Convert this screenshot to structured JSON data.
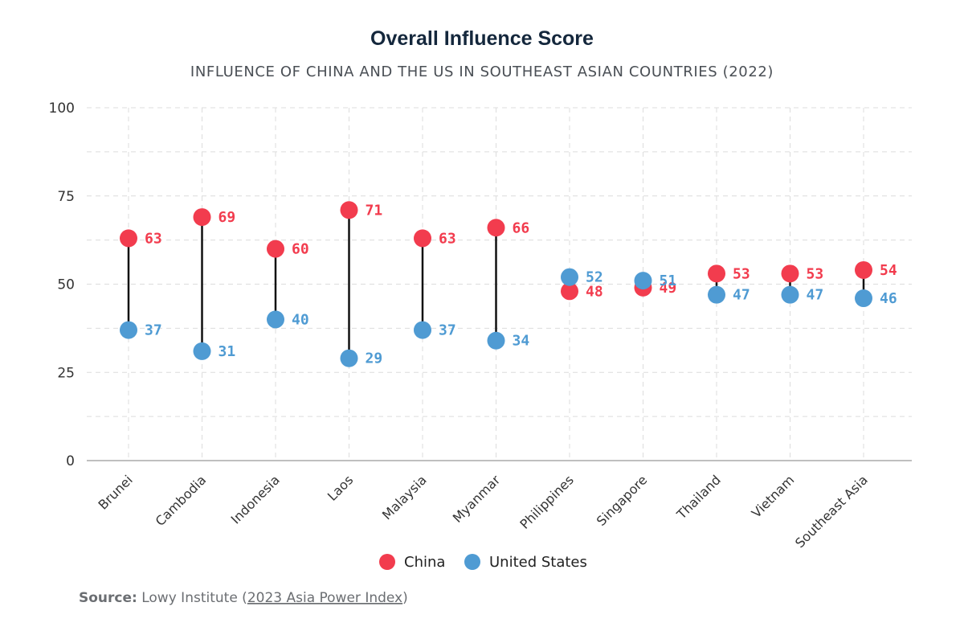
{
  "colors": {
    "china": "#f23c4e",
    "us": "#4f9bd3",
    "connector": "#111111",
    "grid": "#dcdcdc",
    "axis": "#999999"
  },
  "legend": {
    "china": "China",
    "us": "United States"
  },
  "source": {
    "label": "Source:",
    "text": "Lowy Institute (",
    "link_text": "2023 Asia Power Index",
    "close": ")"
  },
  "chart_data": {
    "type": "dumbbell",
    "title": "Overall Influence Score",
    "subtitle": "INFLUENCE OF CHINA AND THE US IN SOUTHEAST ASIAN COUNTRIES (2022)",
    "xlabel": "",
    "ylabel": "",
    "ylim": [
      0,
      100
    ],
    "yticks": [
      0,
      25,
      50,
      75,
      100
    ],
    "grid": true,
    "legend_position": "bottom-center",
    "categories": [
      "Brunei",
      "Cambodia",
      "Indonesia",
      "Laos",
      "Malaysia",
      "Myanmar",
      "Philippines",
      "Singapore",
      "Thailand",
      "Vietnam",
      "Southeast Asia"
    ],
    "series": [
      {
        "name": "China",
        "values": [
          63,
          69,
          60,
          71,
          63,
          66,
          48,
          49,
          53,
          53,
          54
        ]
      },
      {
        "name": "United States",
        "values": [
          37,
          31,
          40,
          29,
          37,
          34,
          52,
          51,
          47,
          47,
          46
        ]
      }
    ]
  }
}
